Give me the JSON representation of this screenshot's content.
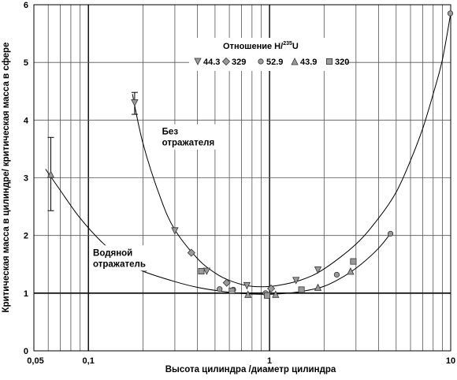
{
  "chart_data": {
    "type": "scatter",
    "x_scale": "log",
    "xlim": [
      0.05,
      10
    ],
    "ylim": [
      0,
      6
    ],
    "grid": true,
    "xlabel": "Высота цилиндра /диаметр цилиндра",
    "ylabel": "Критическая масса в цилиндре/ критическая масса в сфере",
    "x_ticks": [
      "0,05",
      "0,1",
      "1",
      "10"
    ],
    "y_ticks": [
      "0",
      "1",
      "2",
      "3",
      "4",
      "5",
      "6"
    ],
    "legend": {
      "title_prefix": "Отношение H/",
      "title_sup": "235",
      "title_suffix": "U",
      "placement": "top-center",
      "items": [
        {
          "label": "44.3",
          "marker": "triangle-down"
        },
        {
          "label": "329",
          "marker": "diamond"
        },
        {
          "label": "52.9",
          "marker": "circle"
        },
        {
          "label": "43.9",
          "marker": "triangle-up"
        },
        {
          "label": "320",
          "marker": "square"
        }
      ]
    },
    "annotations": [
      {
        "lines": [
          "Без",
          "отражателя"
        ],
        "x": 0.255,
        "y": 3.75
      },
      {
        "lines": [
          "Водяной",
          "отражатель"
        ],
        "x": 0.106,
        "y": 1.65
      }
    ],
    "series": [
      {
        "marker": "triangle-down",
        "points": [
          [
            0.18,
            4.3
          ],
          [
            0.3,
            2.08
          ],
          [
            0.45,
            1.38
          ],
          [
            0.75,
            1.13
          ],
          [
            1.4,
            1.22
          ],
          [
            1.85,
            1.4
          ]
        ],
        "error_bars": [
          {
            "x": 0.18,
            "low": 4.1,
            "high": 4.48
          }
        ]
      },
      {
        "marker": "diamond",
        "points": [
          [
            0.37,
            1.7
          ],
          [
            0.58,
            1.18
          ],
          [
            1.02,
            1.08
          ]
        ]
      },
      {
        "marker": "circle",
        "points": [
          [
            0.205,
            1.42
          ],
          [
            0.53,
            1.07
          ],
          [
            0.63,
            1.06
          ],
          [
            0.95,
            1.0
          ],
          [
            2.35,
            1.32
          ],
          [
            4.65,
            2.03
          ],
          [
            9.95,
            5.85
          ]
        ]
      },
      {
        "marker": "triangle-up",
        "points": [
          [
            0.062,
            3.06
          ],
          [
            0.76,
            0.98
          ],
          [
            1.08,
            0.98
          ],
          [
            1.85,
            1.1
          ],
          [
            2.8,
            1.38
          ]
        ],
        "error_bars": [
          {
            "x": 0.062,
            "low": 2.43,
            "high": 3.7
          }
        ]
      },
      {
        "marker": "square",
        "points": [
          [
            0.42,
            1.38
          ],
          [
            0.62,
            1.04
          ],
          [
            0.97,
            0.96
          ],
          [
            1.5,
            1.06
          ],
          [
            2.9,
            1.55
          ]
        ]
      }
    ],
    "curves": [
      {
        "name": "",
        "points": [
          [
            0.175,
            4.45
          ],
          [
            0.2,
            3.6
          ],
          [
            0.25,
            2.65
          ],
          [
            0.3,
            2.1
          ],
          [
            0.4,
            1.6
          ],
          [
            0.5,
            1.35
          ],
          [
            0.6,
            1.22
          ],
          [
            0.75,
            1.13
          ],
          [
            0.9,
            1.11
          ],
          [
            1.1,
            1.13
          ],
          [
            1.5,
            1.23
          ],
          [
            2.0,
            1.42
          ],
          [
            3.0,
            1.85
          ],
          [
            4.0,
            2.3
          ],
          [
            5.0,
            2.75
          ],
          [
            6.0,
            3.3
          ],
          [
            7.0,
            3.85
          ],
          [
            8.0,
            4.45
          ],
          [
            9.0,
            5.05
          ],
          [
            10.0,
            5.85
          ]
        ]
      },
      {
        "name": "",
        "points": [
          [
            0.058,
            3.15
          ],
          [
            0.07,
            2.78
          ],
          [
            0.09,
            2.3
          ],
          [
            0.12,
            1.87
          ],
          [
            0.16,
            1.55
          ],
          [
            0.2,
            1.38
          ],
          [
            0.3,
            1.2
          ],
          [
            0.4,
            1.1
          ],
          [
            0.55,
            1.03
          ],
          [
            0.7,
            0.995
          ],
          [
            0.9,
            0.98
          ],
          [
            1.1,
            0.985
          ],
          [
            1.5,
            1.03
          ],
          [
            2.0,
            1.12
          ],
          [
            2.6,
            1.3
          ],
          [
            3.2,
            1.5
          ],
          [
            4.0,
            1.78
          ],
          [
            4.7,
            2.05
          ]
        ]
      }
    ]
  }
}
